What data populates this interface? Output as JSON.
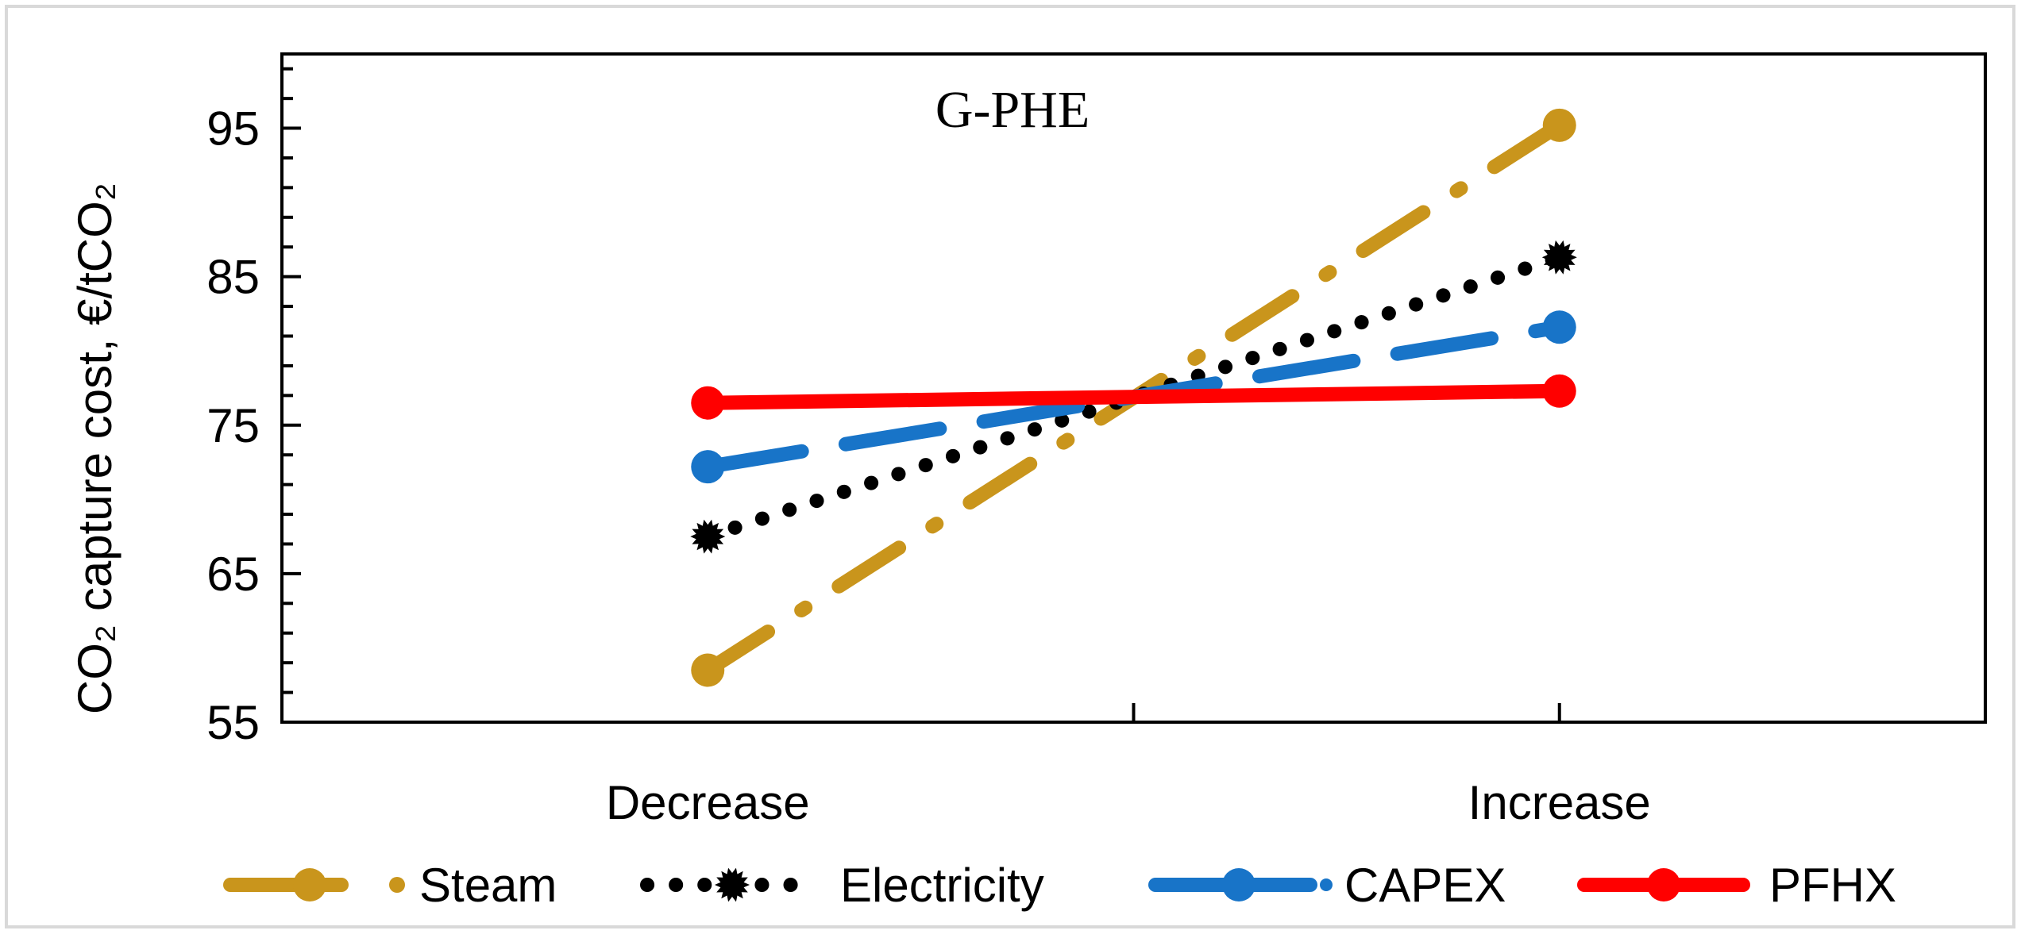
{
  "chart_data": {
    "type": "line",
    "title": "G-PHE",
    "xlabel": "",
    "ylabel": "CO₂ capture cost, €/tCO₂",
    "categories": [
      "Decrease",
      "Increase"
    ],
    "ylim": [
      55,
      100
    ],
    "yticks": [
      55,
      65,
      75,
      85,
      95
    ],
    "grid": false,
    "legend_position": "bottom",
    "series": [
      {
        "name": "Steam",
        "values": [
          58.5,
          95.2
        ],
        "color": "#C9951C",
        "dash": "long-dash-dot",
        "marker": "circle"
      },
      {
        "name": "Electricity",
        "values": [
          67.5,
          86.3
        ],
        "color": "#000000",
        "dash": "dot",
        "marker": "starburst"
      },
      {
        "name": "CAPEX",
        "values": [
          72.2,
          81.6
        ],
        "color": "#1874C8",
        "dash": "long-dash",
        "marker": "circle"
      },
      {
        "name": "PFHX",
        "values": [
          76.5,
          77.3
        ],
        "color": "#FF0000",
        "dash": "solid",
        "marker": "circle"
      }
    ]
  }
}
